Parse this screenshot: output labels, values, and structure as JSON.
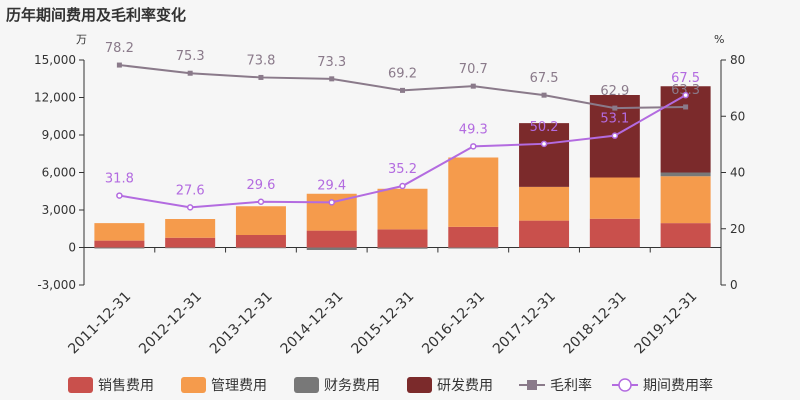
{
  "title": "历年期间费用及毛利率变化",
  "chart_data": {
    "type": "bar",
    "stacked": true,
    "title": "历年期间费用及毛利率变化",
    "left_unit": "万",
    "right_unit": "%",
    "categories": [
      "2011-12-31",
      "2012-12-31",
      "2013-12-31",
      "2014-12-31",
      "2015-12-31",
      "2016-12-31",
      "2017-12-31",
      "2018-12-31",
      "2019-12-31"
    ],
    "ylim_left": [
      -3000,
      15000
    ],
    "yticks_left": [
      -3000,
      0,
      3000,
      6000,
      9000,
      12000,
      15000
    ],
    "ytick_labels_left": [
      "-3,000",
      "0",
      "3,000",
      "6,000",
      "9,000",
      "12,000",
      "15,000"
    ],
    "ylim_right": [
      0,
      80
    ],
    "yticks_right": [
      0,
      20,
      40,
      60,
      80
    ],
    "ytick_labels_right": [
      "0",
      "20",
      "40",
      "60",
      "80"
    ],
    "series": [
      {
        "name": "销售费用",
        "kind": "bar",
        "color": "#c9504c",
        "values": [
          550,
          780,
          1000,
          1350,
          1450,
          1650,
          2150,
          2300,
          1950
        ]
      },
      {
        "name": "管理费用",
        "kind": "bar",
        "color": "#f59b4c",
        "values": [
          1400,
          1500,
          2300,
          2950,
          3250,
          5550,
          2700,
          3300,
          3750
        ]
      },
      {
        "name": "财务费用",
        "kind": "bar",
        "color": "#787878",
        "values": [
          -80,
          -60,
          -60,
          -200,
          -100,
          -80,
          0,
          0,
          300
        ]
      },
      {
        "name": "研发费用",
        "kind": "bar",
        "color": "#7b2a2b",
        "values": [
          0,
          0,
          0,
          0,
          0,
          0,
          5100,
          6600,
          6900
        ]
      },
      {
        "name": "毛利率",
        "kind": "line",
        "axis": "right",
        "color": "#8a7a8a",
        "values": [
          78.2,
          75.3,
          73.8,
          73.3,
          69.2,
          70.7,
          67.5,
          62.9,
          63.3
        ],
        "labels": [
          "78.2",
          "75.3",
          "73.8",
          "73.3",
          "69.2",
          "70.7",
          "67.5",
          "62.9",
          "63.3"
        ]
      },
      {
        "name": "期间费用率",
        "kind": "line",
        "axis": "right",
        "color": "#b36be0",
        "values": [
          31.8,
          27.6,
          29.6,
          29.4,
          35.2,
          49.3,
          50.2,
          53.1,
          67.5
        ],
        "labels": [
          "31.8",
          "27.6",
          "29.6",
          "29.4",
          "35.2",
          "49.3",
          "50.2",
          "53.1",
          "67.5"
        ]
      }
    ],
    "legend_position": "bottom",
    "grid": false
  }
}
